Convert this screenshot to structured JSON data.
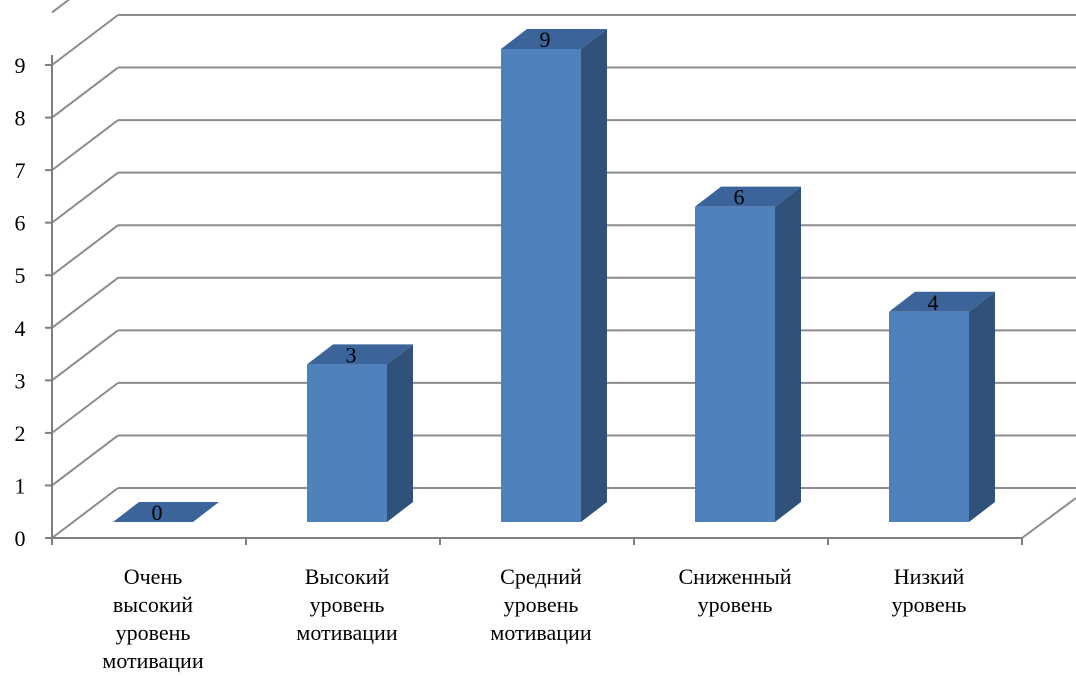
{
  "chart_data": {
    "type": "bar",
    "style": "3d-column",
    "categories": [
      [
        "Очень",
        "высокий",
        "уровень",
        "мотивации"
      ],
      [
        "Высокий",
        "уровень",
        "мотивации"
      ],
      [
        "Средний",
        "уровень",
        "мотивации"
      ],
      [
        "Сниженный",
        "уровень"
      ],
      [
        "Низкий",
        "уровень"
      ]
    ],
    "values": [
      0,
      3,
      9,
      6,
      4
    ],
    "data_labels": [
      "0",
      "3",
      "9",
      "6",
      "4"
    ],
    "ylim": [
      0,
      9
    ],
    "yticks": [
      "0",
      "1",
      "2",
      "3",
      "4",
      "5",
      "6",
      "7",
      "8",
      "9"
    ],
    "grid": true,
    "legend": "none",
    "colors": {
      "front": "#4f81bd",
      "side": "#30527a",
      "top": "#3a649a",
      "grid": "#8c8c8c",
      "axis": "#7f7f7f"
    }
  }
}
